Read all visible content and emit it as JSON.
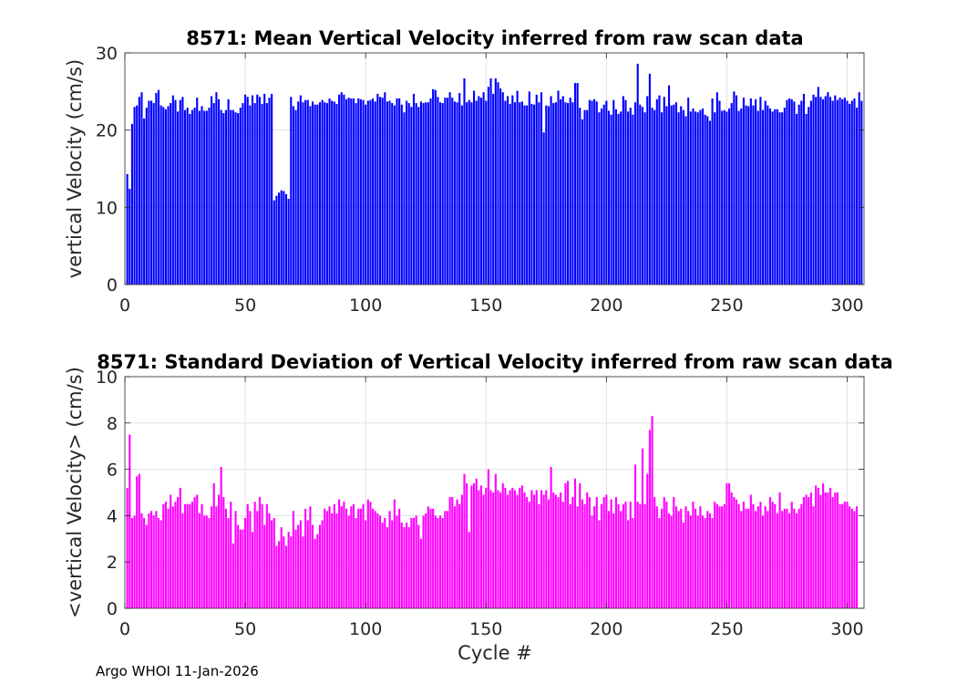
{
  "footer": "Argo WHOI 11-Jan-2026",
  "chart_data": [
    {
      "type": "bar",
      "title": "8571: Mean Vertical Velocity inferred from raw scan data",
      "xlabel": "",
      "ylabel": "vertical Velocity (cm/s)",
      "xlim": [
        0,
        307
      ],
      "ylim": [
        0,
        30
      ],
      "xticks": [
        0,
        50,
        100,
        150,
        200,
        250,
        300
      ],
      "yticks": [
        0,
        10,
        20,
        30
      ],
      "grid": true,
      "color": "#0000ff",
      "x_start": 1,
      "values": [
        14.3,
        12.4,
        20.8,
        23.0,
        23.2,
        24.3,
        24.9,
        21.5,
        22.9,
        23.8,
        23.8,
        23.5,
        24.8,
        25.2,
        23.2,
        23.0,
        22.7,
        23.1,
        23.5,
        24.5,
        23.9,
        22.4,
        23.9,
        24.3,
        22.6,
        22.9,
        22.1,
        22.6,
        22.9,
        24.2,
        22.5,
        23.1,
        22.5,
        22.5,
        22.9,
        24.4,
        23.5,
        24.9,
        24.0,
        22.6,
        22.2,
        22.6,
        24.0,
        22.6,
        22.6,
        22.3,
        22.2,
        22.9,
        23.5,
        24.6,
        24.3,
        23.2,
        24.5,
        23.5,
        24.6,
        24.3,
        23.4,
        24.7,
        23.5,
        24.2,
        24.7,
        10.9,
        11.5,
        11.9,
        12.2,
        12.1,
        11.7,
        11.1,
        24.3,
        23.1,
        22.6,
        23.7,
        24.5,
        23.6,
        23.9,
        23.9,
        23.1,
        23.7,
        23.3,
        23.3,
        23.6,
        23.9,
        23.6,
        23.5,
        24.1,
        23.8,
        23.7,
        23.4,
        24.6,
        24.9,
        24.6,
        24.0,
        24.2,
        24.1,
        24.1,
        23.5,
        24.1,
        24.0,
        23.9,
        23.3,
        23.8,
        23.9,
        24.1,
        23.7,
        24.7,
        24.3,
        24.2,
        24.9,
        23.7,
        23.8,
        23.5,
        23.2,
        24.1,
        24.1,
        23.3,
        22.3,
        23.8,
        23.5,
        23.0,
        24.7,
        23.5,
        23.0,
        23.7,
        23.5,
        23.6,
        23.6,
        24.1,
        25.3,
        25.2,
        24.3,
        23.6,
        23.5,
        24.2,
        24.2,
        24.9,
        24.2,
        23.7,
        23.6,
        24.8,
        23.2,
        26.7,
        23.6,
        23.9,
        23.6,
        25.1,
        23.8,
        24.4,
        24.2,
        24.9,
        23.8,
        25.6,
        26.7,
        24.7,
        26.7,
        26.2,
        25.4,
        24.9,
        23.8,
        24.4,
        23.4,
        24.5,
        23.6,
        25.1,
        23.6,
        23.7,
        23.2,
        23.2,
        25.0,
        23.4,
        23.3,
        24.6,
        23.6,
        24.9,
        19.7,
        23.2,
        23.1,
        24.4,
        23.5,
        23.6,
        25.1,
        24.0,
        24.4,
        23.6,
        23.5,
        24.2,
        23.6,
        26.1,
        26.1,
        22.9,
        21.4,
        22.6,
        22.6,
        23.9,
        23.8,
        24.0,
        23.7,
        22.3,
        22.8,
        23.3,
        23.8,
        22.5,
        22.0,
        23.9,
        22.7,
        22.1,
        22.4,
        24.4,
        23.9,
        22.4,
        22.9,
        22.0,
        23.6,
        28.6,
        23.3,
        23.0,
        22.3,
        24.4,
        27.3,
        22.9,
        22.6,
        24.0,
        24.5,
        22.3,
        24.3,
        23.1,
        25.8,
        23.2,
        23.3,
        23.6,
        22.3,
        23.1,
        22.6,
        21.8,
        24.2,
        22.4,
        22.8,
        22.4,
        22.3,
        22.6,
        22.8,
        22.0,
        21.8,
        21.2,
        24.1,
        22.3,
        24.9,
        23.8,
        22.5,
        22.6,
        22.4,
        22.8,
        23.5,
        25.0,
        24.5,
        22.5,
        22.8,
        24.2,
        23.2,
        23.1,
        24.1,
        23.2,
        24.0,
        22.5,
        24.3,
        22.6,
        23.8,
        23.2,
        22.8,
        22.4,
        22.7,
        22.7,
        22.3,
        22.3,
        22.9,
        23.9,
        24.1,
        24.0,
        23.7,
        22.1,
        23.3,
        23.8,
        24.7,
        22.1,
        23.0,
        23.8,
        24.6,
        24.3,
        25.6,
        24.3,
        24.0,
        24.4,
        24.9,
        24.3,
        23.8,
        24.5,
        23.9,
        24.2,
        24.0,
        24.2,
        23.8,
        23.4,
        23.8,
        24.1,
        22.9,
        24.9,
        23.8
      ]
    },
    {
      "type": "bar",
      "title": "8571: Standard Deviation of Vertical Velocity inferred from raw scan data",
      "xlabel": "Cycle #",
      "ylabel": "<vertical Velocity> (cm/s)",
      "xlim": [
        0,
        307
      ],
      "ylim": [
        0,
        10
      ],
      "xticks": [
        0,
        50,
        100,
        150,
        200,
        250,
        300
      ],
      "yticks": [
        0,
        2,
        4,
        6,
        8,
        10
      ],
      "grid": true,
      "color": "#ff00ff",
      "x_start": 1,
      "values": [
        5.2,
        7.5,
        3.9,
        4.0,
        5.7,
        5.8,
        4.1,
        3.9,
        3.6,
        4.1,
        4.2,
        4.0,
        4.2,
        3.9,
        3.8,
        4.5,
        4.6,
        4.3,
        4.9,
        4.4,
        4.6,
        4.8,
        5.2,
        4.1,
        4.5,
        4.5,
        4.5,
        4.6,
        4.8,
        4.9,
        4.1,
        4.5,
        4.0,
        4.0,
        3.9,
        4.4,
        5.4,
        4.4,
        4.9,
        6.1,
        4.8,
        4.3,
        3.9,
        4.6,
        2.8,
        4.2,
        3.6,
        3.4,
        3.4,
        3.9,
        4.5,
        4.2,
        3.3,
        4.6,
        4.2,
        4.8,
        4.5,
        3.6,
        4.5,
        4.1,
        3.8,
        3.9,
        2.7,
        2.9,
        3.5,
        3.1,
        2.7,
        3.3,
        3.1,
        4.2,
        3.4,
        3.6,
        3.8,
        3.1,
        4.3,
        3.8,
        4.4,
        3.6,
        3.0,
        3.2,
        3.6,
        3.8,
        4.3,
        4.2,
        4.4,
        4.1,
        4.5,
        4.1,
        4.7,
        4.4,
        4.6,
        4.3,
        4.0,
        4.4,
        4.5,
        3.9,
        4.3,
        4.3,
        4.5,
        3.8,
        4.7,
        4.6,
        4.3,
        4.2,
        4.1,
        4.0,
        3.7,
        3.9,
        3.5,
        4.2,
        3.8,
        4.7,
        4.0,
        4.3,
        3.7,
        3.5,
        3.7,
        3.5,
        3.9,
        3.9,
        4.0,
        3.6,
        3.0,
        4.0,
        4.1,
        4.4,
        4.3,
        4.3,
        4.0,
        3.9,
        4.0,
        3.9,
        4.2,
        4.2,
        4.8,
        4.8,
        4.4,
        4.7,
        4.5,
        4.9,
        5.8,
        5.4,
        3.3,
        5.3,
        5.4,
        5.6,
        5.1,
        5.3,
        4.9,
        5.2,
        6.0,
        5.1,
        5.0,
        5.8,
        5.1,
        5.0,
        5.4,
        5.2,
        4.9,
        5.1,
        5.2,
        5.1,
        4.9,
        5.2,
        5.3,
        5.0,
        4.8,
        4.6,
        5.1,
        4.9,
        5.1,
        4.5,
        5.1,
        4.9,
        5.1,
        4.7,
        6.1,
        5.0,
        4.9,
        4.8,
        5.0,
        4.6,
        5.4,
        5.5,
        4.5,
        4.8,
        5.6,
        4.4,
        5.4,
        4.7,
        4.5,
        5.0,
        4.8,
        4.0,
        4.4,
        4.8,
        3.8,
        4.5,
        4.8,
        4.9,
        4.2,
        4.7,
        4.1,
        4.8,
        4.5,
        4.2,
        4.5,
        4.6,
        3.8,
        4.6,
        3.9,
        6.2,
        4.6,
        4.5,
        6.9,
        4.5,
        5.8,
        7.7,
        8.3,
        4.8,
        4.4,
        3.9,
        4.3,
        4.8,
        4.6,
        4.1,
        4.0,
        4.8,
        4.4,
        4.2,
        4.3,
        3.7,
        4.4,
        4.2,
        4.0,
        4.6,
        4.3,
        4.0,
        4.4,
        4.0,
        3.9,
        4.2,
        4.1,
        3.9,
        4.6,
        4.5,
        4.4,
        4.4,
        4.5,
        5.4,
        5.4,
        5.0,
        4.8,
        4.7,
        4.5,
        4.2,
        4.6,
        4.3,
        4.3,
        4.9,
        4.5,
        4.2,
        4.4,
        4.6,
        4.0,
        4.4,
        4.2,
        4.8,
        4.6,
        4.5,
        4.1,
        5.0,
        4.2,
        4.3,
        4.3,
        4.1,
        4.6,
        4.3,
        4.1,
        4.3,
        4.5,
        4.8,
        4.9,
        4.8,
        5.0,
        4.4,
        5.3,
        5.2,
        4.9,
        5.4,
        5.0,
        5.0,
        5.2,
        4.8,
        5.0,
        5.0,
        4.5,
        4.5,
        4.6,
        4.6,
        4.4,
        4.3,
        4.2,
        4.4
      ]
    }
  ]
}
